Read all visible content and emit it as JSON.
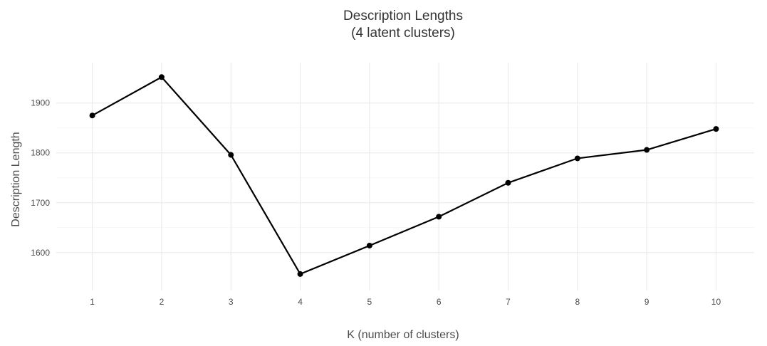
{
  "chart_data": {
    "type": "line",
    "title": "Description Lengths",
    "subtitle": "(4 latent clusters)",
    "xlabel": "K (number of clusters)",
    "ylabel": "Description Length",
    "x": [
      1,
      2,
      3,
      4,
      5,
      6,
      7,
      8,
      9,
      10
    ],
    "y": [
      1875,
      1952,
      1796,
      1557,
      1614,
      1672,
      1740,
      1789,
      1806,
      1848
    ],
    "xlim": [
      0.48,
      10.55
    ],
    "ylim": [
      1524,
      1981
    ],
    "yticks": [
      1600,
      1700,
      1800,
      1900
    ],
    "xticks": [
      1,
      2,
      3,
      4,
      5,
      6,
      7,
      8,
      9,
      10
    ],
    "highlight_x": 4,
    "grid": true,
    "line_color": "#000000",
    "point_color": "#000000",
    "grid_color": "#ebebeb"
  }
}
